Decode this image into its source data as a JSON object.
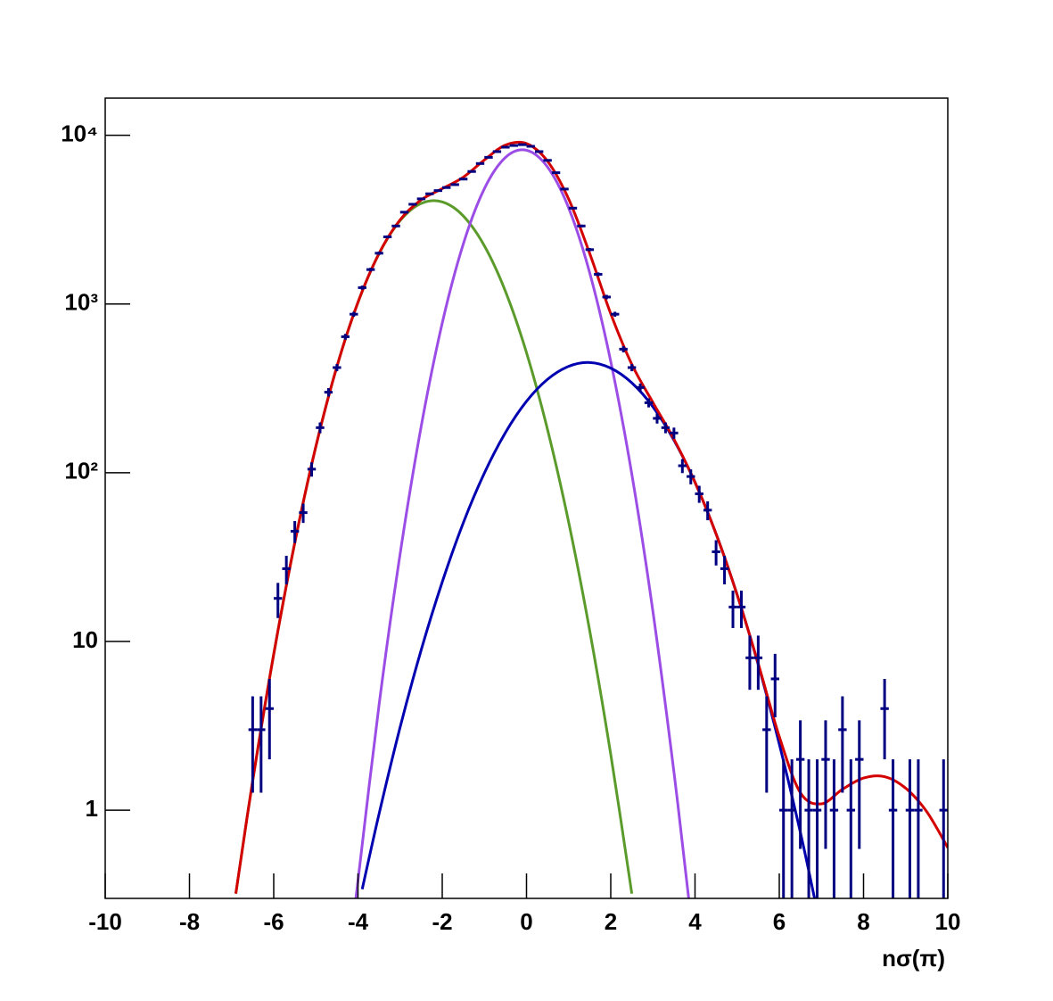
{
  "chart_data": {
    "type": "histogram-fit",
    "xlabel": "nσ(π)",
    "xlim": [
      -10,
      10
    ],
    "xticks": [
      -10,
      -8,
      -6,
      -4,
      -2,
      0,
      2,
      4,
      6,
      8,
      10
    ],
    "ylim": [
      0.3,
      16600
    ],
    "log_y": true,
    "yticks": [
      1,
      10,
      {
        "value": 100,
        "label": "10²"
      },
      {
        "value": 1000,
        "label": "10³"
      },
      {
        "value": 10000,
        "label": "10⁴"
      }
    ],
    "points": {
      "color": "#000080",
      "x": [
        -6.5,
        -6.3,
        -6.1,
        -5.9,
        -5.7,
        -5.5,
        -5.3,
        -5.1,
        -4.9,
        -4.7,
        -4.5,
        -4.3,
        -4.1,
        -3.9,
        -3.7,
        -3.5,
        -3.3,
        -3.1,
        -2.9,
        -2.7,
        -2.5,
        -2.3,
        -2.1,
        -1.9,
        -1.7,
        -1.5,
        -1.3,
        -1.1,
        -0.9,
        -0.7,
        -0.5,
        -0.3,
        -0.1,
        0.1,
        0.3,
        0.5,
        0.7,
        0.9,
        1.1,
        1.3,
        1.5,
        1.7,
        1.9,
        2.1,
        2.3,
        2.5,
        2.7,
        2.9,
        3.1,
        3.3,
        3.5,
        3.7,
        3.9,
        4.1,
        4.3,
        4.5,
        4.7,
        4.9,
        5.1,
        5.3,
        5.5,
        5.7,
        5.9,
        6.1,
        6.3,
        6.5,
        6.7,
        6.9,
        7.1,
        7.3,
        7.5,
        7.7,
        7.9,
        8.5,
        8.7,
        9.1,
        9.3,
        9.9
      ],
      "values": [
        3,
        3,
        4,
        18,
        27,
        45,
        58,
        105,
        185,
        300,
        420,
        640,
        870,
        1250,
        1600,
        2000,
        2500,
        2900,
        3500,
        3900,
        4200,
        4500,
        4700,
        4900,
        5100,
        5500,
        6100,
        6800,
        7400,
        8000,
        8500,
        8700,
        8800,
        8600,
        8000,
        7100,
        6000,
        4800,
        3700,
        2900,
        2100,
        1500,
        1100,
        870,
        540,
        420,
        320,
        260,
        210,
        185,
        172,
        110,
        95,
        75,
        60,
        34,
        27,
        16,
        16,
        8,
        8,
        3,
        6,
        1,
        1,
        2,
        1,
        1,
        2,
        1,
        3,
        1,
        2,
        4,
        1,
        1,
        1,
        1
      ],
      "errors": [
        1.73,
        1.73,
        2,
        4.24,
        5.2,
        6.7,
        7.6,
        10.2,
        13.6,
        17.3,
        20.5,
        25.3,
        29.5,
        35.4,
        40,
        44.7,
        50,
        53.9,
        59.2,
        62.4,
        64.8,
        67.1,
        68.6,
        70,
        71.4,
        74.2,
        78.1,
        82.5,
        86,
        89.4,
        92.2,
        93.3,
        93.8,
        92.7,
        89.4,
        84.3,
        77.5,
        69.3,
        60.8,
        53.9,
        45.8,
        38.7,
        33.2,
        29.5,
        23.2,
        20.5,
        17.9,
        16.1,
        14.5,
        13.6,
        13.1,
        10.5,
        9.7,
        8.7,
        7.7,
        5.8,
        5.2,
        4,
        4,
        2.83,
        2.83,
        1.73,
        2.45,
        1,
        1,
        1.41,
        1,
        1,
        1.41,
        1,
        1.73,
        1,
        1.41,
        2,
        1,
        1,
        1,
        1
      ]
    },
    "curves": [
      {
        "color": "#5b9b2b",
        "x": [
          -6.9,
          -6.5,
          -6,
          -5.5,
          -5,
          -4.5,
          -4,
          -3.5,
          -3,
          -2.5,
          -2,
          -1.5,
          -1,
          -0.5,
          0,
          0.5,
          1,
          1.5,
          2,
          2.5
        ],
        "y": [
          0.32,
          1.49,
          8.4,
          38.5,
          143,
          426,
          1023,
          1989,
          3119,
          3946,
          4031,
          3326,
          2213,
          1189,
          515,
          180,
          51,
          11.6,
          2.14,
          0.32
        ]
      },
      {
        "color": "#9b4de6",
        "x": [
          -4.05,
          -3.5,
          -3,
          -2.5,
          -2,
          -1.5,
          -1,
          -0.5,
          0,
          0.5,
          1,
          1.5,
          2,
          2.5,
          3,
          3.5,
          3.85
        ],
        "y": [
          0.3,
          4.2,
          33,
          188,
          771,
          2270,
          4826,
          7388,
          8147,
          6479,
          3715,
          1532,
          456,
          98,
          15.1,
          1.68,
          0.3
        ]
      },
      {
        "color": "#0000b0",
        "x": [
          -3.9,
          -3.5,
          -3,
          -2.5,
          -2,
          -1.5,
          -1,
          -0.5,
          0,
          0.5,
          1,
          1.5,
          2,
          2.5,
          3,
          3.5,
          4,
          4.5,
          5,
          5.5,
          6,
          6.5,
          6.85
        ],
        "y": [
          0.34,
          0.95,
          3.1,
          8.9,
          22.5,
          50.5,
          99.5,
          173,
          265,
          358,
          427,
          450,
          417,
          341,
          246,
          156,
          87.7,
          43.4,
          18.9,
          7.3,
          2.47,
          0.74,
          0.29
        ]
      },
      {
        "color": "#d40000",
        "x": [
          -6.9,
          -6.5,
          -6,
          -5.5,
          -5,
          -4.5,
          -4,
          -3.5,
          -3,
          -2.5,
          -2,
          -1.5,
          -1,
          -0.5,
          0,
          0.5,
          1,
          1.5,
          2,
          2.5,
          3,
          3.5,
          4,
          4.5,
          5,
          5.5,
          6,
          6.5,
          7,
          7.5,
          8,
          8.5,
          9,
          9.5,
          10
        ],
        "y": [
          0.32,
          1.49,
          8.4,
          38.5,
          143,
          426,
          1024,
          1994,
          3155,
          4143,
          4825,
          5646,
          7139,
          8750,
          8927,
          7017,
          4193,
          1994,
          875,
          439,
          261,
          158,
          87.7,
          43.4,
          18.9,
          7.4,
          2.73,
          1.27,
          1.09,
          1.33,
          1.55,
          1.58,
          1.35,
          0.98,
          0.6
        ]
      }
    ]
  }
}
